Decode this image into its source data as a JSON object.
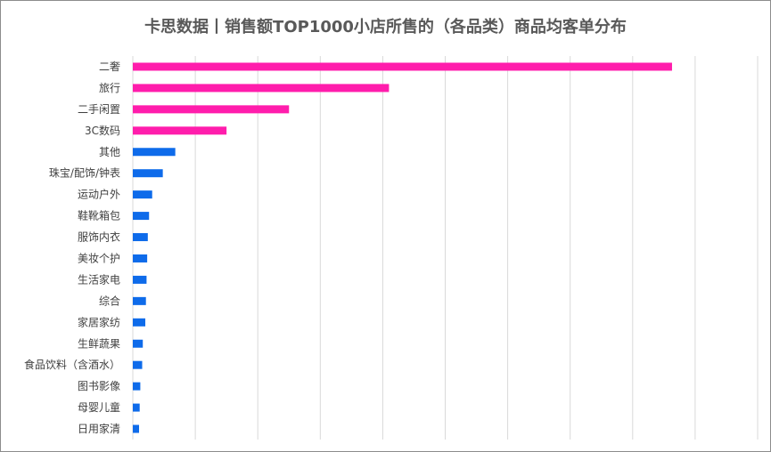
{
  "chart_data": {
    "type": "bar",
    "orientation": "horizontal",
    "title": "卡思数据丨销售额TOP1000小店所售的（各品类）商品均客单分布",
    "categories": [
      "二奢",
      "旅行",
      "二手闲置",
      "3C数码",
      "其他",
      "珠宝/配饰/钟表",
      "运动户外",
      "鞋靴箱包",
      "服饰内衣",
      "美妆个护",
      "生活家电",
      "综合",
      "家居家纺",
      "生鲜蔬果",
      "食品饮料（含酒水）",
      "图书影像",
      "母婴儿童",
      "日用家清"
    ],
    "values": [
      86.3,
      41.0,
      25.0,
      15.0,
      6.8,
      4.8,
      3.1,
      2.6,
      2.4,
      2.3,
      2.2,
      2.1,
      2.0,
      1.6,
      1.5,
      1.2,
      1.1,
      1.0
    ],
    "highlight_count": 4,
    "colors": {
      "highlight": "#ff1dac",
      "normal": "#0e6bea",
      "grid": "#d9d9d9"
    },
    "xlim": [
      0,
      100
    ],
    "grid": true,
    "legend": "none",
    "tick_labels_shown": false
  }
}
